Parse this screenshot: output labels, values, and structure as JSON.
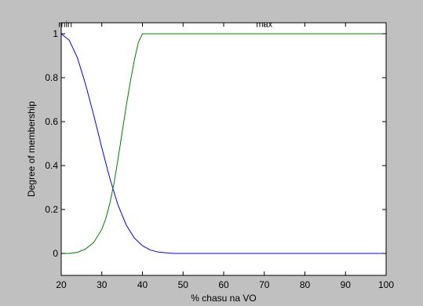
{
  "chart_data": {
    "type": "line",
    "title": "",
    "xlabel": "% chasu na VO",
    "ylabel": "Degree of membership",
    "xlim": [
      20,
      100
    ],
    "ylim": [
      -0.1,
      1.05
    ],
    "x_ticks": [
      "20",
      "30",
      "40",
      "50",
      "60",
      "70",
      "80",
      "90",
      "100"
    ],
    "y_ticks": [
      "0",
      "0.2",
      "0.4",
      "0.6",
      "0.8",
      "1"
    ],
    "grid": false,
    "annotations": [
      {
        "text": "min",
        "x": 21,
        "y": 1.03
      },
      {
        "text": "max",
        "x": 70,
        "y": 1.03
      }
    ],
    "series": [
      {
        "name": "min",
        "color": "#0000ff",
        "x": [
          20,
          22,
          24,
          26,
          28,
          30,
          32,
          34,
          36,
          38,
          40,
          42,
          44,
          46,
          48,
          50,
          60,
          70,
          80,
          90,
          100
        ],
        "y": [
          1.0,
          0.97,
          0.89,
          0.77,
          0.63,
          0.48,
          0.34,
          0.22,
          0.13,
          0.07,
          0.035,
          0.015,
          0.006,
          0.002,
          0.0,
          0.0,
          0.0,
          0.0,
          0.0,
          0.0,
          0.0
        ]
      },
      {
        "name": "max",
        "color": "#007f00",
        "x": [
          20,
          22,
          24,
          26,
          28,
          30,
          31,
          32,
          33,
          34,
          35,
          36,
          37,
          38,
          39,
          40,
          50,
          60,
          70,
          80,
          90,
          100
        ],
        "y": [
          0.0,
          0.0,
          0.005,
          0.02,
          0.05,
          0.11,
          0.16,
          0.23,
          0.32,
          0.43,
          0.55,
          0.67,
          0.78,
          0.88,
          0.96,
          1.0,
          1.0,
          1.0,
          1.0,
          1.0,
          1.0,
          1.0
        ]
      }
    ]
  }
}
